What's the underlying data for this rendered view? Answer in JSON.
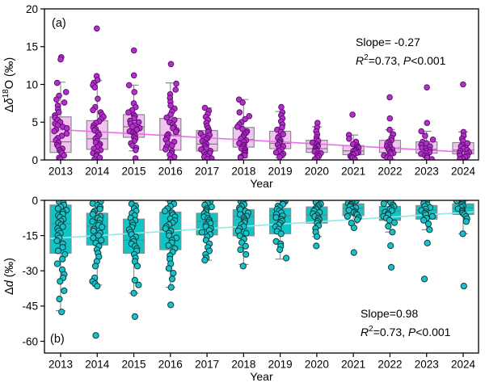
{
  "figure": {
    "background": "#ffffff",
    "xlabel": "Year",
    "years": [
      "2013",
      "2014",
      "2015",
      "2016",
      "2017",
      "2018",
      "2019",
      "2020",
      "2021",
      "2022",
      "2023",
      "2024"
    ]
  },
  "chart_data": [
    {
      "type": "boxplot-scatter",
      "panel_label": "(a)",
      "ylabel_parts": [
        {
          "text": "Δ"
        },
        {
          "text": "δ",
          "italic": true
        },
        {
          "text": "18",
          "sup": true
        },
        {
          "text": "O (‰)"
        }
      ],
      "xlabel": "Year",
      "ylim": [
        0,
        20
      ],
      "yticks": {
        "values": [
          0,
          5,
          10,
          15,
          20
        ],
        "labels": [
          "0",
          "5",
          "10",
          "15",
          "20"
        ]
      },
      "categories": [
        "2013",
        "2014",
        "2015",
        "2016",
        "2017",
        "2018",
        "2019",
        "2020",
        "2021",
        "2022",
        "2023",
        "2024"
      ],
      "annotation": {
        "line1": "Slope= -0.27",
        "r_symbol": "R",
        "r_exp": "2",
        "r_rest": "=0.73, ",
        "p_symbol": "P",
        "p_rest": "<0.001"
      },
      "trend": {
        "start_year": 2013,
        "start_value": 4.0,
        "end_year": 2024,
        "end_value": 1.05,
        "slope": -0.27,
        "r2": 0.73,
        "p": "<0.001"
      },
      "boxes": [
        {
          "year": "2013",
          "q1": 1.0,
          "median": 2.4,
          "q3": 5.7,
          "whisker_low": 0.05,
          "whisker_high": 10.3
        },
        {
          "year": "2014",
          "q1": 1.4,
          "median": 2.8,
          "q3": 5.2,
          "whisker_low": 0.05,
          "whisker_high": 10.5
        },
        {
          "year": "2015",
          "q1": 3.0,
          "median": 4.4,
          "q3": 6.0,
          "whisker_low": 1.2,
          "whisker_high": 9.9
        },
        {
          "year": "2016",
          "q1": 1.3,
          "median": 3.3,
          "q3": 5.5,
          "whisker_low": 0.05,
          "whisker_high": 10.2
        },
        {
          "year": "2017",
          "q1": 1.2,
          "median": 2.1,
          "q3": 3.9,
          "whisker_low": 0.05,
          "whisker_high": 6.9
        },
        {
          "year": "2018",
          "q1": 1.7,
          "median": 2.7,
          "q3": 4.3,
          "whisker_low": 0.3,
          "whisker_high": 8.0
        },
        {
          "year": "2019",
          "q1": 1.5,
          "median": 2.2,
          "q3": 3.8,
          "whisker_low": 0.3,
          "whisker_high": 6.4
        },
        {
          "year": "2020",
          "q1": 1.0,
          "median": 1.5,
          "q3": 2.6,
          "whisker_low": 0.05,
          "whisker_high": 4.4
        },
        {
          "year": "2021",
          "q1": 0.7,
          "median": 1.2,
          "q3": 1.9,
          "whisker_low": 0.05,
          "whisker_high": 3.3
        },
        {
          "year": "2022",
          "q1": 1.0,
          "median": 1.6,
          "q3": 2.6,
          "whisker_low": 0.1,
          "whisker_high": 4.0
        },
        {
          "year": "2023",
          "q1": 0.9,
          "median": 1.4,
          "q3": 2.4,
          "whisker_low": 0.05,
          "whisker_high": 3.8
        },
        {
          "year": "2024",
          "q1": 0.8,
          "median": 1.3,
          "q3": 2.3,
          "whisker_low": 0.05,
          "whisker_high": 3.7
        }
      ],
      "points": [
        [
          13.6,
          13.3,
          10.2,
          9.0,
          8.5,
          8.0,
          7.6,
          7.2,
          6.7,
          6.3,
          5.9,
          5.6,
          5.3,
          5.0,
          4.8,
          4.6,
          4.4,
          4.2,
          4.0,
          3.8,
          3.5,
          3.2,
          2.9,
          2.6,
          2.3,
          2.0,
          1.8,
          1.5,
          1.3,
          1.1,
          0.9,
          0.6,
          0.3,
          0.1
        ],
        [
          17.4,
          11.1,
          10.6,
          10.2,
          9.9,
          9.6,
          8.1,
          7.0,
          6.6,
          6.3,
          6.0,
          5.7,
          5.4,
          5.1,
          4.9,
          4.6,
          4.3,
          4.1,
          3.9,
          3.6,
          3.3,
          3.0,
          2.8,
          2.5,
          2.3,
          2.1,
          1.9,
          1.7,
          1.5,
          1.3,
          1.1,
          0.9,
          0.7,
          0.5,
          0.3,
          0.1
        ],
        [
          14.5,
          11.2,
          9.9,
          9.0,
          7.5,
          7.0,
          6.6,
          6.3,
          6.0,
          5.8,
          5.5,
          5.2,
          5.0,
          4.8,
          4.6,
          4.4,
          4.2,
          4.0,
          3.8,
          3.6,
          3.4,
          3.2,
          3.0,
          2.8,
          2.5,
          2.2,
          1.9,
          1.6,
          1.3,
          0.2
        ],
        [
          12.7,
          10.1,
          9.3,
          8.7,
          8.2,
          7.7,
          7.2,
          6.8,
          6.4,
          6.0,
          5.6,
          5.3,
          5.0,
          4.7,
          4.4,
          4.2,
          3.9,
          3.7,
          3.4,
          3.2,
          2.9,
          2.7,
          2.4,
          2.2,
          1.9,
          1.7,
          1.4,
          1.2,
          0.9,
          0.7,
          0.4,
          0.1
        ],
        [
          6.9,
          6.5,
          6.1,
          5.7,
          5.3,
          4.9,
          4.5,
          4.2,
          3.9,
          3.7,
          3.5,
          3.3,
          3.1,
          2.9,
          2.7,
          2.5,
          2.3,
          2.1,
          1.9,
          1.7,
          1.5,
          1.4,
          1.2,
          1.0,
          0.9,
          0.7,
          0.5,
          0.4,
          0.2,
          0.1
        ],
        [
          8.0,
          7.6,
          6.3,
          5.8,
          5.4,
          5.0,
          4.7,
          4.4,
          4.1,
          3.8,
          3.6,
          3.4,
          3.2,
          3.0,
          2.8,
          2.6,
          2.4,
          2.2,
          2.0,
          1.9,
          1.7,
          1.5,
          1.4,
          1.2,
          1.0,
          0.9,
          0.7,
          0.6,
          0.4,
          0.3
        ],
        [
          7.0,
          6.3,
          5.9,
          5.5,
          5.1,
          4.7,
          4.3,
          4.0,
          3.7,
          3.4,
          3.1,
          2.9,
          2.6,
          2.4,
          2.2,
          2.0,
          1.8,
          1.6,
          1.4,
          1.2,
          1.0,
          0.8,
          0.6,
          0.4
        ],
        [
          4.9,
          4.3,
          3.8,
          3.4,
          3.0,
          2.7,
          2.5,
          2.3,
          2.1,
          1.9,
          1.8,
          1.6,
          1.5,
          1.3,
          1.2,
          1.1,
          0.9,
          0.8,
          0.6,
          0.5,
          0.3,
          0.1
        ],
        [
          6.0,
          3.3,
          2.8,
          2.4,
          2.1,
          1.9,
          1.7,
          1.6,
          1.4,
          1.3,
          1.2,
          1.1,
          1.0,
          0.9,
          0.8,
          0.7,
          0.5,
          0.4,
          0.3,
          0.1
        ],
        [
          8.3,
          5.5,
          4.0,
          3.4,
          2.9,
          2.6,
          2.4,
          2.2,
          2.0,
          1.8,
          1.7,
          1.5,
          1.4,
          1.3,
          1.1,
          1.0,
          0.9,
          0.8,
          0.6,
          0.5,
          0.3,
          0.2
        ],
        [
          9.6,
          4.9,
          3.8,
          3.2,
          2.7,
          2.4,
          2.2,
          2.0,
          1.8,
          1.6,
          1.5,
          1.3,
          1.2,
          1.0,
          0.9,
          0.8,
          0.6,
          0.5,
          0.3,
          0.1
        ],
        [
          10.0,
          3.7,
          3.2,
          2.8,
          2.5,
          2.2,
          2.0,
          1.8,
          1.6,
          1.5,
          1.3,
          1.2,
          1.0,
          0.9,
          0.8,
          0.6,
          0.5,
          0.4,
          0.2,
          0.1
        ]
      ],
      "colors": {
        "point_fill": "#b52fc9",
        "point_edge": "#5e0d74",
        "box_fill": "#f2c3f0",
        "box_edge": "#8a8a8a",
        "median": "#7a7a7a",
        "whisker": "#8a8a8a",
        "trend": "#e96fe9"
      }
    },
    {
      "type": "boxplot-scatter",
      "panel_label": "(b)",
      "ylabel_parts": [
        {
          "text": "Δ"
        },
        {
          "text": "d",
          "italic": true
        },
        {
          "text": " (‰)"
        }
      ],
      "xlabel": "Year",
      "ylim": [
        -65,
        0
      ],
      "yticks": {
        "values": [
          0,
          -15,
          -30,
          -45,
          -60
        ],
        "labels": [
          "0",
          "-15",
          "-30",
          "-45",
          "-60"
        ]
      },
      "categories": [
        "2013",
        "2014",
        "2015",
        "2016",
        "2017",
        "2018",
        "2019",
        "2020",
        "2021",
        "2022",
        "2023",
        "2024"
      ],
      "annotation": {
        "line1": "Slope=0.98",
        "r_symbol": "R",
        "r_exp": "2",
        "r_rest": "=0.73, ",
        "p_symbol": "P",
        "p_rest": "<0.001"
      },
      "trend": {
        "start_year": 2013,
        "start_value": -16.0,
        "end_year": 2024,
        "end_value": -5.2,
        "slope": 0.98,
        "r2": 0.73,
        "p": "<0.001"
      },
      "boxes": [
        {
          "year": "2013",
          "q1": -22.5,
          "median": -10.0,
          "q3": -2.0,
          "whisker_low": -47.0,
          "whisker_high": -0.3
        },
        {
          "year": "2014",
          "q1": -19.0,
          "median": -11.0,
          "q3": -5.5,
          "whisker_low": -36.0,
          "whisker_high": -0.3
        },
        {
          "year": "2015",
          "q1": -22.5,
          "median": -17.0,
          "q3": -8.0,
          "whisker_low": -39.5,
          "whisker_high": -1.0
        },
        {
          "year": "2016",
          "q1": -21.0,
          "median": -12.5,
          "q3": -5.0,
          "whisker_low": -37.0,
          "whisker_high": -0.3
        },
        {
          "year": "2017",
          "q1": -14.7,
          "median": -8.9,
          "q3": -5.5,
          "whisker_low": -25.5,
          "whisker_high": -0.3
        },
        {
          "year": "2018",
          "q1": -15.1,
          "median": -6.8,
          "q3": -4.0,
          "whisker_low": -27.3,
          "whisker_high": -0.3
        },
        {
          "year": "2019",
          "q1": -14.2,
          "median": -6.5,
          "q3": -3.4,
          "whisker_low": -25.0,
          "whisker_high": -0.3
        },
        {
          "year": "2020",
          "q1": -9.7,
          "median": -6.2,
          "q3": -2.8,
          "whisker_low": -15.4,
          "whisker_high": -0.2
        },
        {
          "year": "2021",
          "q1": -6.5,
          "median": -3.4,
          "q3": -1.5,
          "whisker_low": -9.7,
          "whisker_high": -0.1
        },
        {
          "year": "2022",
          "q1": -8.5,
          "median": -4.5,
          "q3": -2.6,
          "whisker_low": -13.5,
          "whisker_high": -0.2
        },
        {
          "year": "2023",
          "q1": -8.0,
          "median": -4.0,
          "q3": -2.2,
          "whisker_low": -12.5,
          "whisker_high": -0.2
        },
        {
          "year": "2024",
          "q1": -6.0,
          "median": -3.2,
          "q3": -1.5,
          "whisker_low": -14.2,
          "whisker_high": -0.2
        }
      ],
      "points": [
        [
          -0.5,
          -1.2,
          -2.0,
          -2.8,
          -3.5,
          -4.2,
          -5.0,
          -5.8,
          -6.5,
          -7.2,
          -8.0,
          -8.8,
          -9.6,
          -10.4,
          -11.2,
          -12.0,
          -13.0,
          -14.0,
          -15.0,
          -16.0,
          -17.2,
          -18.5,
          -20.0,
          -21.5,
          -23.0,
          -25.0,
          -27.0,
          -29.5,
          -31.5,
          -33.0,
          -34.5,
          -38.5,
          -42.0,
          -47.5
        ],
        [
          -0.5,
          -1.3,
          -2.1,
          -2.9,
          -3.7,
          -4.5,
          -5.2,
          -6.0,
          -6.8,
          -7.5,
          -8.3,
          -9.0,
          -9.8,
          -10.6,
          -11.4,
          -12.2,
          -13.0,
          -14.0,
          -15.0,
          -16.0,
          -17.0,
          -18.2,
          -19.5,
          -21.0,
          -22.5,
          -24.0,
          -26.0,
          -28.0,
          -33.0,
          -34.5,
          -35.5,
          -36.5,
          -57.5
        ],
        [
          -1.5,
          -2.5,
          -3.5,
          -4.5,
          -5.5,
          -6.5,
          -7.5,
          -8.5,
          -9.5,
          -10.5,
          -11.5,
          -12.5,
          -13.5,
          -14.5,
          -15.5,
          -16.5,
          -17.5,
          -18.5,
          -19.5,
          -20.5,
          -21.5,
          -23.0,
          -24.5,
          -26.0,
          -28.0,
          -34.0,
          -36.0,
          -39.5,
          -49.5
        ],
        [
          -0.5,
          -1.5,
          -2.5,
          -3.5,
          -4.5,
          -5.3,
          -6.1,
          -7.0,
          -7.8,
          -8.6,
          -9.5,
          -10.3,
          -11.2,
          -12.0,
          -13.0,
          -14.0,
          -15.0,
          -16.0,
          -17.0,
          -18.0,
          -19.2,
          -20.5,
          -22.0,
          -23.5,
          -25.0,
          -27.0,
          -29.0,
          -31.0,
          -33.5,
          -37.0,
          -44.5
        ],
        [
          -0.5,
          -1.2,
          -2.0,
          -2.8,
          -3.5,
          -4.2,
          -4.9,
          -5.6,
          -6.3,
          -7.0,
          -7.7,
          -8.4,
          -9.1,
          -9.8,
          -10.5,
          -11.2,
          -12.0,
          -12.8,
          -13.6,
          -14.5,
          -15.5,
          -17.0,
          -18.5,
          -20.0,
          -21.5,
          -23.0,
          -24.5,
          -25.5
        ],
        [
          -0.4,
          -1.1,
          -1.8,
          -2.5,
          -3.2,
          -3.9,
          -4.6,
          -5.3,
          -6.0,
          -6.7,
          -7.4,
          -8.1,
          -8.8,
          -9.5,
          -10.3,
          -11.1,
          -12.0,
          -13.0,
          -14.0,
          -15.1,
          -16.5,
          -18.0,
          -19.5,
          -21.0,
          -23.0,
          -28.0
        ],
        [
          -0.4,
          -1.0,
          -1.7,
          -2.4,
          -3.1,
          -3.8,
          -4.5,
          -5.2,
          -5.9,
          -6.6,
          -7.3,
          -8.0,
          -8.8,
          -9.6,
          -10.4,
          -11.2,
          -12.2,
          -13.2,
          -14.2,
          -17.5,
          -18.5,
          -19.5,
          -21.0,
          -24.6
        ],
        [
          -0.3,
          -0.9,
          -1.5,
          -2.1,
          -2.7,
          -3.3,
          -3.9,
          -4.5,
          -5.1,
          -5.7,
          -6.3,
          -6.9,
          -7.5,
          -8.2,
          -8.9,
          -9.7,
          -10.8,
          -12.0,
          -13.5,
          -15.4,
          -19.4
        ],
        [
          -0.2,
          -0.7,
          -1.2,
          -1.7,
          -2.2,
          -2.7,
          -3.2,
          -3.7,
          -4.2,
          -4.7,
          -5.2,
          -5.7,
          -6.2,
          -6.8,
          -7.4,
          -8.2,
          -9.7,
          -11.7,
          -22.2
        ],
        [
          -0.3,
          -0.8,
          -1.4,
          -2.0,
          -2.6,
          -3.2,
          -3.8,
          -4.4,
          -5.0,
          -5.6,
          -6.2,
          -6.8,
          -7.5,
          -8.5,
          -9.5,
          -11.0,
          -13.5,
          -19.3,
          -28.5
        ],
        [
          -0.2,
          -0.7,
          -1.3,
          -1.9,
          -2.5,
          -3.1,
          -3.7,
          -4.3,
          -4.9,
          -5.5,
          -6.1,
          -6.8,
          -7.6,
          -8.5,
          -10.0,
          -12.5,
          -18.2,
          -33.5
        ],
        [
          -0.2,
          -0.7,
          -1.2,
          -1.8,
          -2.4,
          -3.0,
          -3.6,
          -4.2,
          -4.8,
          -5.4,
          -6.0,
          -6.8,
          -7.8,
          -9.0,
          -14.2,
          -36.5
        ]
      ],
      "colors": {
        "point_fill": "#17c3c9",
        "point_edge": "#0b3b3b",
        "box_fill": "#0fc5c5",
        "box_edge": "#8a8a8a",
        "median": "#7a7a7a",
        "whisker": "#8a8a8a",
        "trend": "#8fe9e5"
      }
    }
  ]
}
